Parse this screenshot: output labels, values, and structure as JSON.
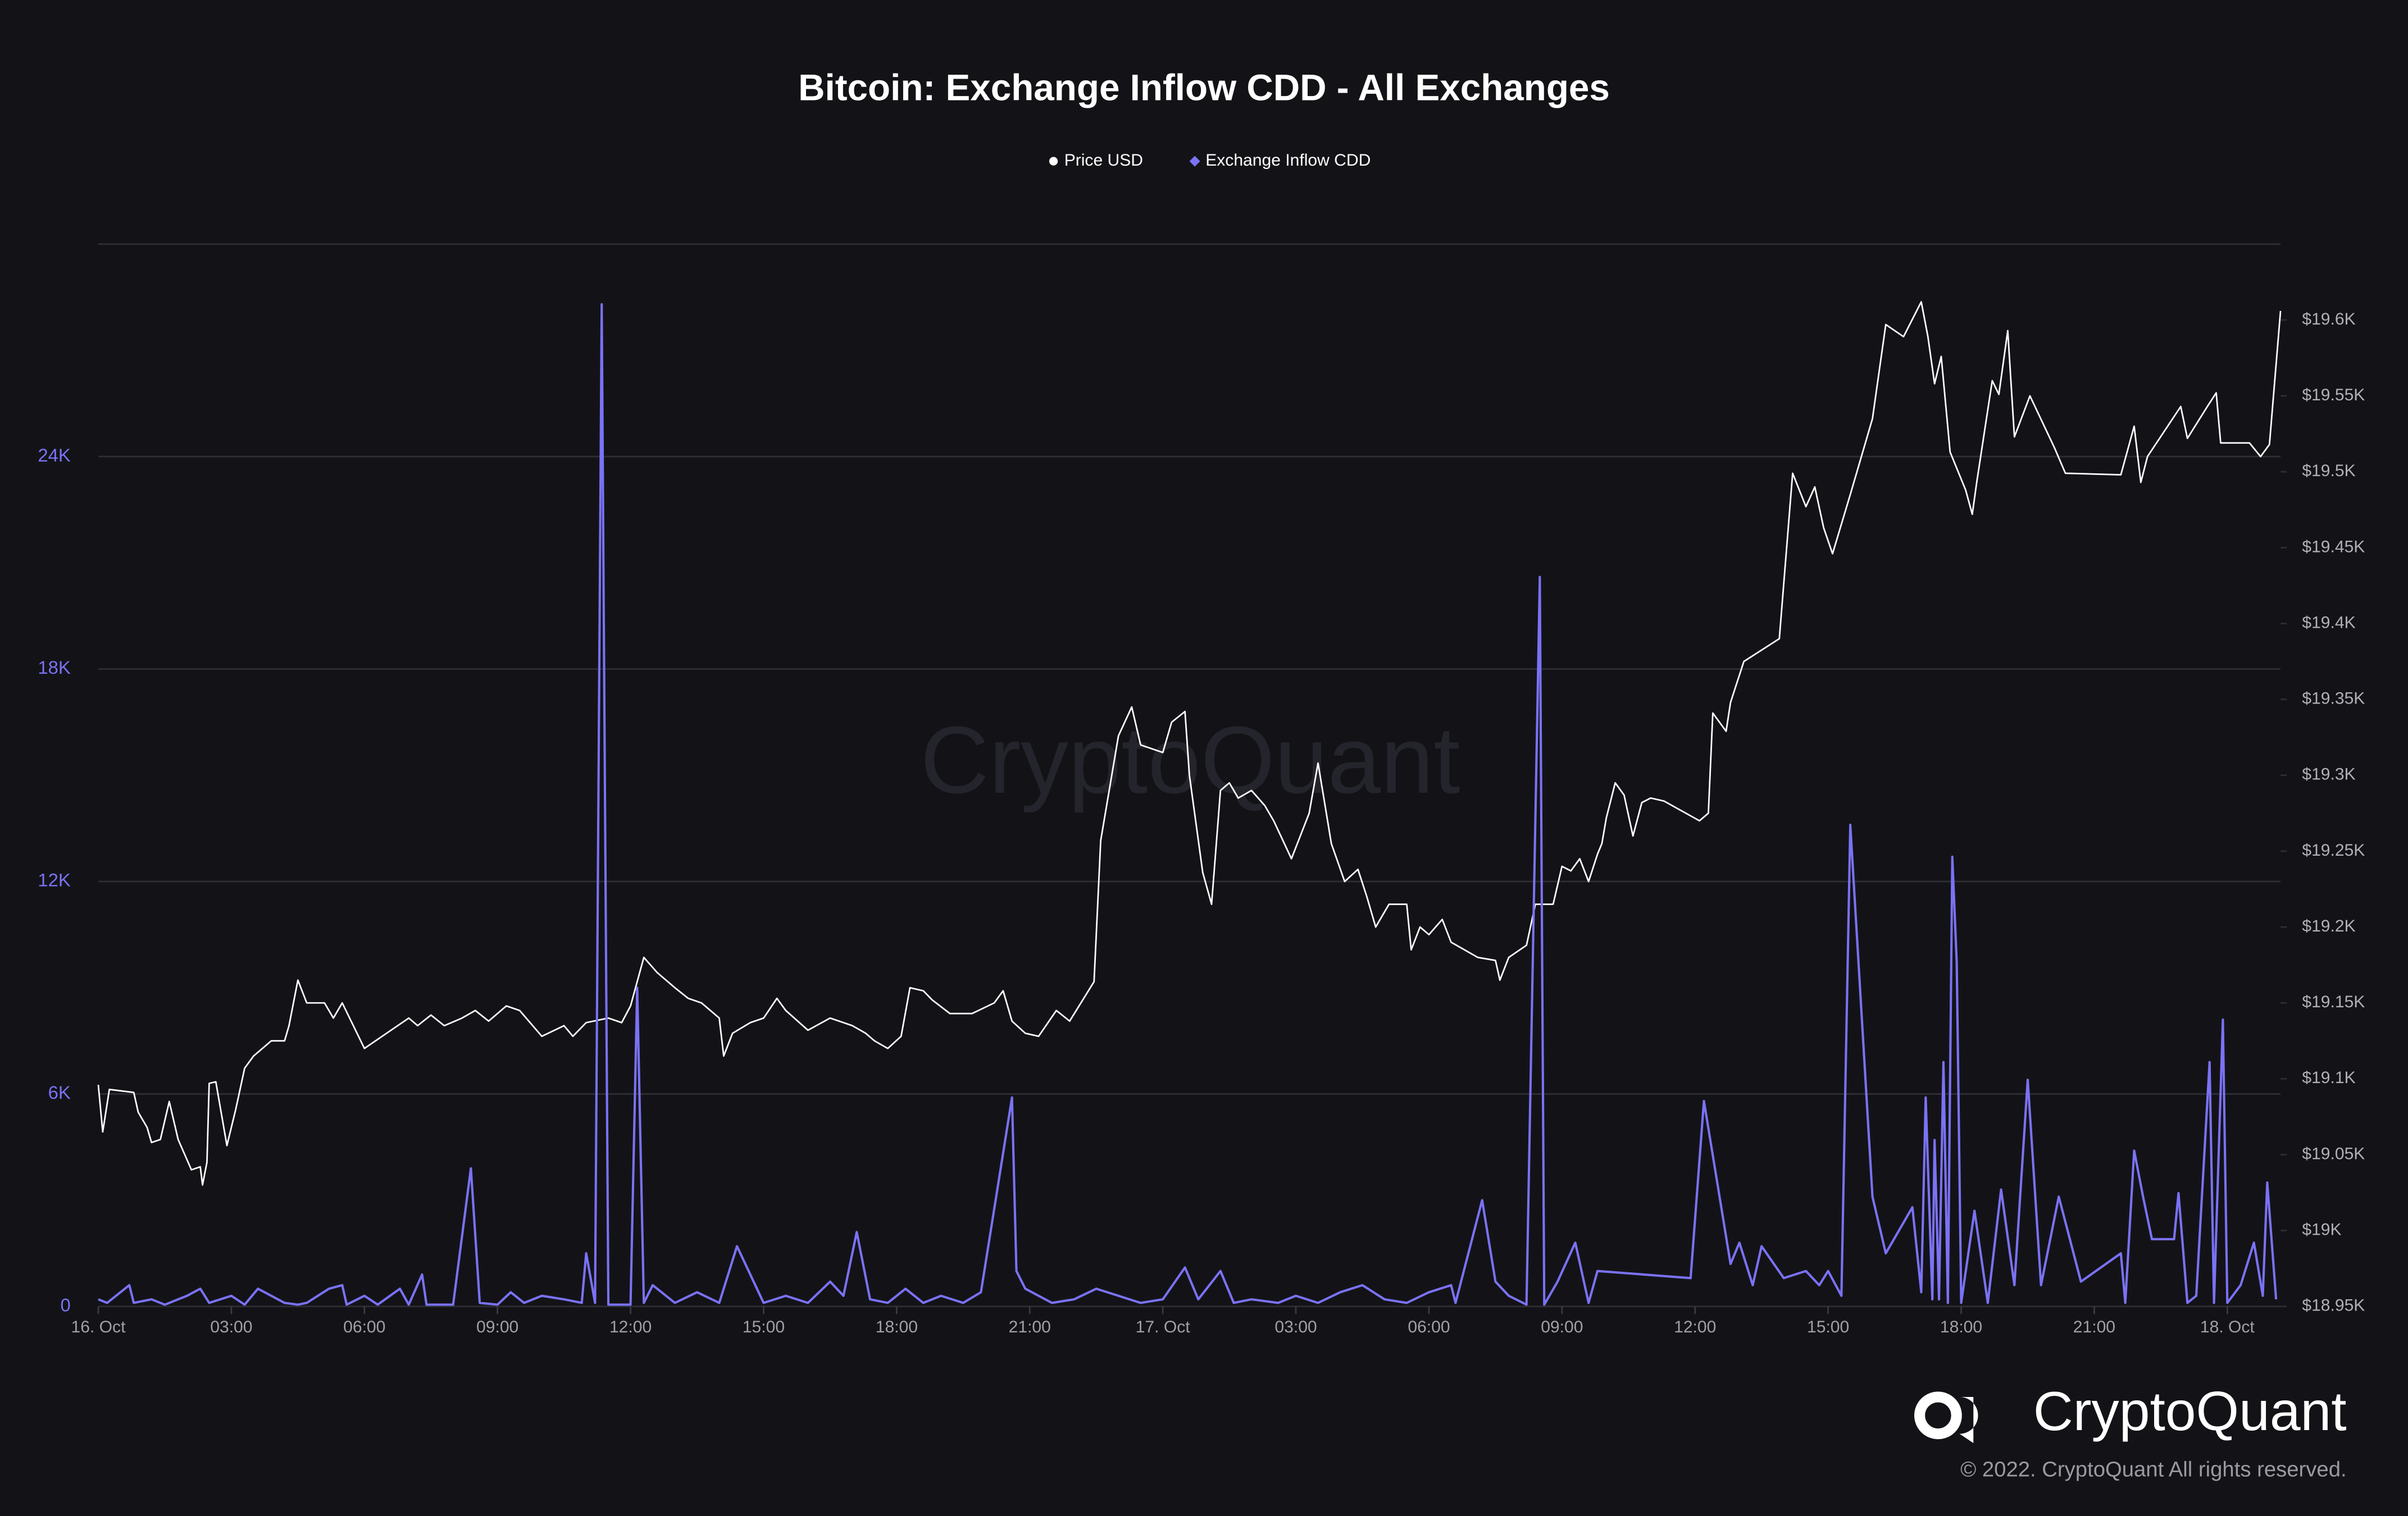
{
  "chart_data": {
    "type": "line",
    "title": "Bitcoin: Exchange Inflow CDD - All Exchanges",
    "legend": "top",
    "grid": true,
    "xlim": [
      0,
      49.2
    ],
    "xticks": [
      {
        "value": 0,
        "label": "16. Oct"
      },
      {
        "value": 3,
        "label": "03:00"
      },
      {
        "value": 6,
        "label": "06:00"
      },
      {
        "value": 9,
        "label": "09:00"
      },
      {
        "value": 12,
        "label": "12:00"
      },
      {
        "value": 15,
        "label": "15:00"
      },
      {
        "value": 18,
        "label": "18:00"
      },
      {
        "value": 21,
        "label": "21:00"
      },
      {
        "value": 24,
        "label": "17. Oct"
      },
      {
        "value": 27,
        "label": "03:00"
      },
      {
        "value": 30,
        "label": "06:00"
      },
      {
        "value": 33,
        "label": "09:00"
      },
      {
        "value": 36,
        "label": "12:00"
      },
      {
        "value": 39,
        "label": "15:00"
      },
      {
        "value": 42,
        "label": "18:00"
      },
      {
        "value": 45,
        "label": "21:00"
      },
      {
        "value": 48,
        "label": "18. Oct"
      }
    ],
    "ylim": [
      0,
      30000
    ],
    "yticks": [
      0,
      {
        "value": 6000,
        "label": "6K"
      },
      {
        "value": 12000,
        "label": "12K"
      },
      {
        "value": 18000,
        "label": "18K"
      },
      {
        "value": 24000,
        "label": "24K"
      }
    ],
    "y2lim": [
      18950,
      19650
    ],
    "y2ticks": [
      {
        "value": 18950,
        "label": "$18.95K"
      },
      {
        "value": 19000,
        "label": "$19K"
      },
      {
        "value": 19050,
        "label": "$19.05K"
      },
      {
        "value": 19100,
        "label": "$19.1K"
      },
      {
        "value": 19150,
        "label": "$19.15K"
      },
      {
        "value": 19200,
        "label": "$19.2K"
      },
      {
        "value": 19250,
        "label": "$19.25K"
      },
      {
        "value": 19300,
        "label": "$19.3K"
      },
      {
        "value": 19350,
        "label": "$19.35K"
      },
      {
        "value": 19400,
        "label": "$19.4K"
      },
      {
        "value": 19450,
        "label": "$19.45K"
      },
      {
        "value": 19500,
        "label": "$19.5K"
      },
      {
        "value": 19550,
        "label": "$19.55K"
      },
      {
        "value": 19600,
        "label": "$19.6K"
      }
    ],
    "series": [
      {
        "name": "Price USD",
        "color": "#ffffff",
        "axis": "y2",
        "marker": "circle",
        "x": [
          0,
          0.1,
          0.25,
          0.8,
          0.9,
          1.1,
          1.2,
          1.4,
          1.6,
          1.8,
          2.1,
          2.3,
          2.35,
          2.45,
          2.5,
          2.65,
          2.9,
          3.1,
          3.3,
          3.5,
          3.9,
          4.2,
          4.3,
          4.5,
          4.7,
          5.1,
          5.3,
          5.5,
          5.8,
          6.0,
          6.5,
          7.0,
          7.2,
          7.5,
          7.8,
          8.2,
          8.5,
          8.8,
          9.2,
          9.5,
          10.0,
          10.5,
          10.7,
          11.0,
          11.5,
          11.8,
          12.0,
          12.3,
          12.6,
          13.0,
          13.3,
          13.6,
          14.0,
          14.1,
          14.3,
          14.7,
          15.0,
          15.3,
          15.5,
          16.0,
          16.5,
          17.0,
          17.3,
          17.5,
          17.8,
          18.1,
          18.3,
          18.6,
          18.8,
          19.2,
          19.7,
          20.2,
          20.4,
          20.6,
          20.9,
          21.2,
          21.6,
          21.9,
          22.45,
          22.6,
          23.0,
          23.3,
          23.5,
          24.0,
          24.2,
          24.5,
          24.6,
          24.9,
          25.1,
          25.3,
          25.5,
          25.7,
          26.0,
          26.3,
          26.5,
          26.9,
          27.3,
          27.5,
          27.8,
          28.1,
          28.4,
          28.6,
          28.8,
          29.1,
          29.5,
          29.6,
          29.8,
          30.0,
          30.3,
          30.5,
          30.8,
          31.1,
          31.5,
          31.6,
          31.8,
          32.2,
          32.4,
          32.8,
          33.0,
          33.2,
          33.4,
          33.6,
          33.8,
          33.9,
          34.0,
          34.2,
          34.4,
          34.6,
          34.8,
          35.0,
          35.3,
          36.1,
          36.3,
          36.4,
          36.7,
          36.8,
          37.1,
          37.9,
          38.2,
          38.5,
          38.7,
          38.9,
          39.1,
          39.5,
          40.0,
          40.3,
          40.7,
          41.1,
          41.25,
          41.4,
          41.55,
          41.75,
          42.1,
          42.25,
          42.35,
          42.7,
          42.85,
          43.05,
          43.2,
          43.55,
          44.1,
          44.35,
          45.6,
          45.9,
          46.05,
          46.2,
          46.95,
          47.1,
          47.55,
          47.75,
          47.85,
          48.5,
          48.75,
          48.95,
          49.2
        ],
        "values": [
          19096,
          19065,
          19093,
          19091,
          19078,
          19068,
          19058,
          19060,
          19085,
          19060,
          19040,
          19042,
          19030,
          19045,
          19097,
          19098,
          19056,
          19080,
          19107,
          19115,
          19125,
          19125,
          19135,
          19165,
          19150,
          19150,
          19140,
          19150,
          19132,
          19120,
          19130,
          19140,
          19135,
          19142,
          19135,
          19140,
          19145,
          19138,
          19148,
          19145,
          19128,
          19135,
          19128,
          19137,
          19140,
          19137,
          19148,
          19180,
          19170,
          19160,
          19153,
          19150,
          19140,
          19115,
          19130,
          19137,
          19140,
          19153,
          19145,
          19132,
          19140,
          19135,
          19130,
          19125,
          19120,
          19128,
          19160,
          19158,
          19152,
          19143,
          19143,
          19150,
          19158,
          19138,
          19130,
          19128,
          19145,
          19138,
          19164,
          19257,
          19326,
          19345,
          19320,
          19315,
          19335,
          19342,
          19300,
          19236,
          19215,
          19290,
          19295,
          19285,
          19290,
          19280,
          19270,
          19245,
          19275,
          19308,
          19255,
          19230,
          19238,
          19220,
          19200,
          19215,
          19215,
          19185,
          19200,
          19195,
          19205,
          19190,
          19185,
          19180,
          19178,
          19165,
          19180,
          19188,
          19215,
          19215,
          19240,
          19237,
          19245,
          19230,
          19248,
          19255,
          19272,
          19295,
          19287,
          19260,
          19282,
          19285,
          19283,
          19270,
          19275,
          19341,
          19329,
          19348,
          19375,
          19390,
          19499,
          19477,
          19490,
          19463,
          19446,
          19485,
          19535,
          19597,
          19589,
          19612,
          19589,
          19558,
          19576,
          19513,
          19488,
          19472,
          19493,
          19560,
          19551,
          19593,
          19523,
          19550,
          19516,
          19499,
          19498,
          19530,
          19493,
          19510,
          19543,
          19522,
          19543,
          19552,
          19519,
          19519,
          19510,
          19518,
          19606
        ]
      },
      {
        "name": "Exchange Inflow CDD",
        "color": "#7b72f6",
        "axis": "y",
        "marker": "diamond",
        "x": [
          0,
          0.2,
          0.4,
          0.7,
          0.8,
          1.2,
          1.5,
          2.0,
          2.3,
          2.5,
          3.0,
          3.3,
          3.6,
          3.9,
          4.2,
          4.5,
          4.7,
          5.2,
          5.5,
          5.6,
          6.0,
          6.3,
          6.8,
          7.0,
          7.3,
          7.4,
          8.0,
          8.4,
          8.6,
          9.0,
          9.3,
          9.6,
          10.0,
          10.5,
          10.9,
          11.0,
          11.1,
          11.2,
          11.35,
          11.5,
          12.0,
          12.15,
          12.3,
          12.5,
          13.0,
          13.5,
          14.0,
          14.4,
          15.0,
          15.5,
          16.0,
          16.5,
          16.8,
          17.1,
          17.4,
          17.8,
          18.2,
          18.6,
          19.0,
          19.5,
          19.9,
          20.6,
          20.7,
          20.9,
          21.5,
          22.0,
          22.5,
          23.0,
          23.5,
          24.0,
          24.5,
          24.8,
          25.3,
          25.6,
          26.0,
          26.6,
          27.0,
          27.5,
          28.0,
          28.5,
          29.0,
          29.5,
          30.0,
          30.5,
          30.6,
          31.2,
          31.5,
          31.8,
          32.2,
          32.5,
          32.6,
          32.9,
          33.3,
          33.6,
          33.8,
          35.9,
          36.2,
          36.8,
          37.0,
          37.3,
          37.5,
          38.0,
          38.5,
          38.8,
          39.0,
          39.3,
          39.5,
          40.0,
          40.3,
          40.9,
          41.1,
          41.2,
          41.35,
          41.4,
          41.5,
          41.6,
          41.7,
          41.8,
          41.9,
          42.0,
          42.3,
          42.6,
          42.9,
          43.2,
          43.5,
          43.8,
          44.2,
          44.7,
          45.6,
          45.7,
          45.9,
          46.1,
          46.3,
          46.8,
          46.9,
          47.1,
          47.3,
          47.6,
          47.7,
          47.9,
          48.0,
          48.3,
          48.6,
          48.8,
          48.9,
          49.1
        ],
        "values": [
          200,
          100,
          300,
          600,
          100,
          200,
          50,
          300,
          500,
          100,
          300,
          50,
          500,
          300,
          100,
          50,
          100,
          500,
          600,
          50,
          300,
          50,
          500,
          50,
          900,
          50,
          50,
          3900,
          100,
          50,
          400,
          100,
          300,
          200,
          100,
          1500,
          800,
          100,
          28300,
          50,
          50,
          9000,
          100,
          600,
          100,
          400,
          100,
          1700,
          100,
          300,
          100,
          700,
          300,
          2100,
          200,
          100,
          500,
          100,
          300,
          100,
          400,
          5900,
          1000,
          500,
          100,
          200,
          500,
          300,
          100,
          200,
          1100,
          200,
          1000,
          100,
          200,
          100,
          300,
          100,
          400,
          600,
          200,
          100,
          400,
          600,
          100,
          3000,
          700,
          300,
          50,
          20600,
          50,
          700,
          1800,
          100,
          1000,
          800,
          5800,
          1200,
          1800,
          600,
          1700,
          800,
          1000,
          600,
          1000,
          300,
          13600,
          3100,
          1500,
          2800,
          400,
          5900,
          200,
          4700,
          200,
          6900,
          100,
          12700,
          9700,
          100,
          2700,
          100,
          3300,
          600,
          6400,
          600,
          3100,
          700,
          1500,
          100,
          4400,
          3100,
          1900,
          1900,
          3200,
          100,
          300,
          6900,
          100,
          8100,
          100,
          600,
          1800,
          300,
          3500,
          200
        ]
      }
    ]
  },
  "branding": {
    "watermark": "CryptoQuant",
    "logo": "CryptoQuant",
    "copyright": "© 2022. CryptoQuant All rights reserved."
  }
}
